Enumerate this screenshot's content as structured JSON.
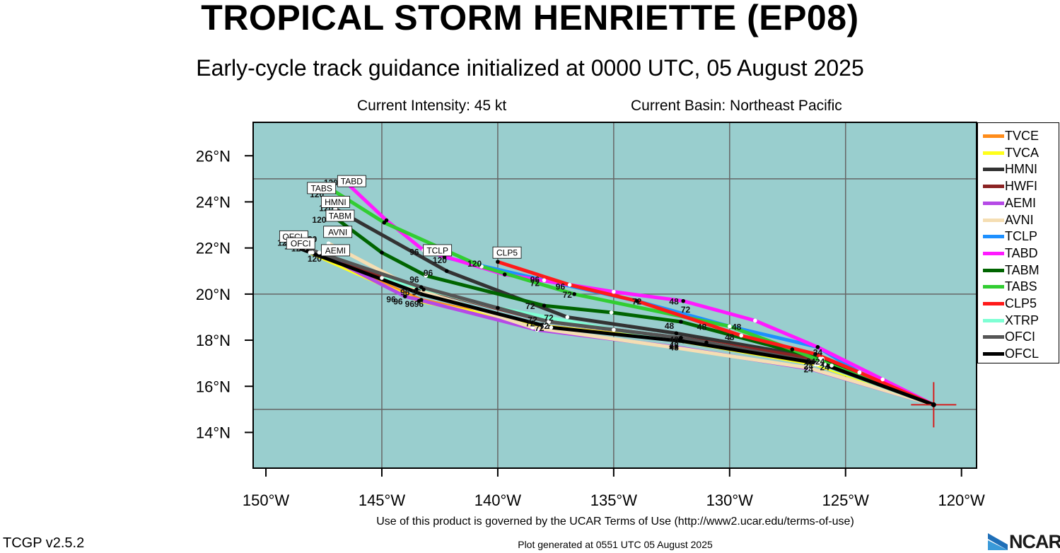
{
  "header": {
    "title": "TROPICAL STORM HENRIETTE (EP08)",
    "subtitle": "Early-cycle track guidance initialized at 0000 UTC, 05 August 2025",
    "intensity": "Current Intensity: 45 kt",
    "basin": "Current Basin: Northeast Pacific"
  },
  "colors": {
    "ocean": "#99CECE",
    "grid": "#666666",
    "TVCE": "#FF8C1A",
    "TVCA": "#FFFF1A",
    "HMNI": "#333333",
    "HWFI": "#8B2323",
    "AEMI": "#B54AE6",
    "AVNI": "#F5DEB3",
    "TCLP": "#1E90FF",
    "TABD": "#FF1AFF",
    "TABM": "#006400",
    "TABS": "#32CD32",
    "CLP5": "#FF1A1A",
    "XTRP": "#7FFFD4",
    "OFCI": "#555555",
    "OFCL": "#000000"
  },
  "axes": {
    "lon_ticks": [
      {
        "value": -150,
        "label": "150°W"
      },
      {
        "value": -145,
        "label": "145°W"
      },
      {
        "value": -140,
        "label": "140°W"
      },
      {
        "value": -135,
        "label": "135°W"
      },
      {
        "value": -130,
        "label": "130°W"
      },
      {
        "value": -125,
        "label": "125°W"
      },
      {
        "value": -120,
        "label": "120°W"
      }
    ],
    "lat_ticks": [
      {
        "value": 14,
        "label": "14°N"
      },
      {
        "value": 16,
        "label": "16°N"
      },
      {
        "value": 18,
        "label": "18°N"
      },
      {
        "value": 20,
        "label": "20°N"
      },
      {
        "value": 22,
        "label": "22°N"
      },
      {
        "value": 24,
        "label": "24°N"
      },
      {
        "value": 26,
        "label": "26°N"
      }
    ],
    "lon_grid": [
      -145,
      -140,
      -135,
      -130,
      -125
    ],
    "lat_grid": [
      15,
      20,
      25
    ],
    "lon_range": [
      -150.55,
      -119.35
    ],
    "lat_range": [
      12.45,
      27.45
    ]
  },
  "storm": {
    "lon": -121.2,
    "lat": 15.2
  },
  "legend": [
    "TVCE",
    "TVCA",
    "HMNI",
    "HWFI",
    "AEMI",
    "AVNI",
    "TCLP",
    "TABD",
    "TABM",
    "TABS",
    "CLP5",
    "XTRP",
    "OFCI",
    "OFCL"
  ],
  "tracks": [
    {
      "name": "TVCE",
      "points": [
        [
          -121.2,
          15.2
        ],
        [
          -126.2,
          16.95
        ],
        [
          -132.2,
          18.0
        ],
        [
          -137.9,
          18.6
        ],
        [
          -143.3,
          19.75
        ],
        [
          -148.0,
          21.8
        ]
      ]
    },
    {
      "name": "TVCA",
      "points": [
        [
          -121.2,
          15.2
        ],
        [
          -126.3,
          16.95
        ],
        [
          -132.3,
          18.0
        ],
        [
          -138.0,
          18.6
        ],
        [
          -143.4,
          19.7
        ],
        [
          -148.1,
          21.8
        ]
      ]
    },
    {
      "name": "HMNI",
      "points": [
        [
          -121.2,
          15.2
        ],
        [
          -126.0,
          17.2
        ],
        [
          -132.3,
          18.3
        ],
        [
          -137.0,
          19.0
        ],
        [
          -142.2,
          21.0
        ],
        [
          -147.0,
          23.7
        ]
      ]
    },
    {
      "name": "HWFI",
      "points": [
        [
          -121.2,
          15.2
        ],
        [
          -126.0,
          17.15
        ],
        [
          -132.1,
          18.1
        ],
        [
          -137.8,
          18.8
        ],
        [
          -143.2,
          20.2
        ],
        [
          -148.0,
          21.8
        ]
      ]
    },
    {
      "name": "AEMI",
      "points": [
        [
          -121.2,
          15.2
        ],
        [
          -126.5,
          16.75
        ],
        [
          -132.3,
          17.7
        ],
        [
          -138.3,
          18.45
        ],
        [
          -144.0,
          19.9
        ],
        [
          -147.7,
          21.8
        ]
      ]
    },
    {
      "name": "AVNI",
      "points": [
        [
          -121.2,
          15.2
        ],
        [
          -126.6,
          16.8
        ],
        [
          -132.5,
          17.7
        ],
        [
          -138.5,
          18.55
        ],
        [
          -143.5,
          20.2
        ],
        [
          -147.3,
          22.2
        ]
      ]
    },
    {
      "name": "TCLP",
      "points": [
        [
          -121.2,
          15.2
        ],
        [
          -124.4,
          16.6
        ],
        [
          -126.2,
          17.7
        ],
        [
          -130.0,
          18.6
        ],
        [
          -134.0,
          19.7
        ],
        [
          -138.0,
          20.6
        ],
        [
          -142.3,
          21.6
        ]
      ]
    },
    {
      "name": "TABD",
      "points": [
        [
          -121.2,
          15.2
        ],
        [
          -123.4,
          16.3
        ],
        [
          -126.2,
          17.7
        ],
        [
          -128.9,
          18.85
        ],
        [
          -132.0,
          19.7
        ],
        [
          -135.0,
          20.1
        ],
        [
          -139.7,
          20.85
        ],
        [
          -143.2,
          21.9
        ],
        [
          -144.8,
          23.2
        ],
        [
          -146.6,
          24.9
        ]
      ]
    },
    {
      "name": "TABM",
      "points": [
        [
          -121.2,
          15.2
        ],
        [
          -126.1,
          17.2
        ],
        [
          -132.1,
          18.8
        ],
        [
          -135.1,
          19.2
        ],
        [
          -138.0,
          19.5
        ],
        [
          -143.1,
          20.8
        ],
        [
          -145.0,
          21.8
        ],
        [
          -147.0,
          23.3
        ]
      ]
    },
    {
      "name": "TABS",
      "points": [
        [
          -121.2,
          15.2
        ],
        [
          -125.6,
          16.9
        ],
        [
          -127.3,
          17.6
        ],
        [
          -130.0,
          18.6
        ],
        [
          -136.7,
          20.0
        ],
        [
          -140.7,
          21.2
        ],
        [
          -144.9,
          23.1
        ],
        [
          -147.1,
          24.5
        ]
      ]
    },
    {
      "name": "CLP5",
      "points": [
        [
          -121.2,
          15.2
        ],
        [
          -124.4,
          16.6
        ],
        [
          -126.3,
          17.4
        ],
        [
          -129.5,
          18.2
        ],
        [
          -134.0,
          19.7
        ],
        [
          -136.9,
          20.4
        ],
        [
          -140.0,
          21.4
        ]
      ]
    },
    {
      "name": "XTRP",
      "points": [
        [
          -121.2,
          15.2
        ],
        [
          -126.2,
          17.0
        ],
        [
          -131.0,
          17.9
        ],
        [
          -135.0,
          18.45
        ],
        [
          -140.0,
          19.4
        ],
        [
          -145.0,
          20.7
        ]
      ]
    },
    {
      "name": "OFCI",
      "points": [
        [
          -121.2,
          15.2
        ],
        [
          -126.1,
          17.0
        ],
        [
          -132.1,
          18.1
        ],
        [
          -137.8,
          18.8
        ],
        [
          -143.3,
          20.3
        ],
        [
          -148.3,
          22.0
        ]
      ]
    },
    {
      "name": "OFCL",
      "points": [
        [
          -121.2,
          15.2
        ],
        [
          -125.9,
          16.95
        ],
        [
          -132.0,
          17.95
        ],
        [
          -137.7,
          18.55
        ],
        [
          -143.3,
          20.0
        ],
        [
          -148.6,
          22.0
        ]
      ]
    }
  ],
  "track_end_labels": [
    {
      "text": "TABD",
      "lon": -146.3,
      "lat": 24.9
    },
    {
      "text": "TABS",
      "lon": -147.6,
      "lat": 24.6
    },
    {
      "text": "HMNI",
      "lon": -147.0,
      "lat": 24.0
    },
    {
      "text": "TABM",
      "lon": -146.8,
      "lat": 23.4
    },
    {
      "text": "AVNI",
      "lon": -146.9,
      "lat": 22.7
    },
    {
      "text": "OFCL",
      "lon": -148.8,
      "lat": 22.5
    },
    {
      "text": "OFCI",
      "lon": -148.5,
      "lat": 22.2
    },
    {
      "text": "AEMI",
      "lon": -147.0,
      "lat": 21.9
    },
    {
      "text": "TCLP",
      "lon": -142.6,
      "lat": 21.9
    },
    {
      "text": "CLP5",
      "lon": -139.6,
      "lat": 21.8
    }
  ],
  "hour_labels": [
    {
      "text": "120",
      "lon": -147.2,
      "lat": 24.7
    },
    {
      "text": "120",
      "lon": -147.8,
      "lat": 24.2
    },
    {
      "text": "120",
      "lon": -147.4,
      "lat": 23.6
    },
    {
      "text": "120",
      "lon": -147.7,
      "lat": 23.1
    },
    {
      "text": "120",
      "lon": -148.1,
      "lat": 22.25
    },
    {
      "text": "120",
      "lon": -149.2,
      "lat": 22.1
    },
    {
      "text": "120",
      "lon": -148.9,
      "lat": 21.95
    },
    {
      "text": "120",
      "lon": -148.6,
      "lat": 21.85
    },
    {
      "text": "120",
      "lon": -147.9,
      "lat": 21.4
    },
    {
      "text": "120",
      "lon": -142.5,
      "lat": 21.35
    },
    {
      "text": "120",
      "lon": -141.0,
      "lat": 21.2
    },
    {
      "text": "96",
      "lon": -143.6,
      "lat": 21.7
    },
    {
      "text": "96",
      "lon": -142.8,
      "lat": 21.75
    },
    {
      "text": "96",
      "lon": -143.0,
      "lat": 20.8
    },
    {
      "text": "96",
      "lon": -143.6,
      "lat": 20.5
    },
    {
      "text": "96",
      "lon": -144.0,
      "lat": 19.95
    },
    {
      "text": "96",
      "lon": -143.5,
      "lat": 19.95
    },
    {
      "text": "96",
      "lon": -144.6,
      "lat": 19.65
    },
    {
      "text": "96",
      "lon": -144.3,
      "lat": 19.55
    },
    {
      "text": "96",
      "lon": -143.8,
      "lat": 19.45
    },
    {
      "text": "96",
      "lon": -143.4,
      "lat": 19.45
    },
    {
      "text": "96",
      "lon": -138.4,
      "lat": 20.5
    },
    {
      "text": "96",
      "lon": -137.3,
      "lat": 20.2
    },
    {
      "text": "72",
      "lon": -138.4,
      "lat": 20.35
    },
    {
      "text": "72",
      "lon": -137.0,
      "lat": 19.85
    },
    {
      "text": "72",
      "lon": -134.0,
      "lat": 19.55
    },
    {
      "text": "72",
      "lon": -131.9,
      "lat": 19.2
    },
    {
      "text": "72",
      "lon": -138.6,
      "lat": 19.35
    },
    {
      "text": "72",
      "lon": -137.8,
      "lat": 18.85
    },
    {
      "text": "72",
      "lon": -138.5,
      "lat": 18.75
    },
    {
      "text": "72",
      "lon": -138.6,
      "lat": 18.6
    },
    {
      "text": "72",
      "lon": -138.2,
      "lat": 18.4
    },
    {
      "text": "72",
      "lon": -138.0,
      "lat": 18.5
    },
    {
      "text": "48",
      "lon": -132.4,
      "lat": 19.55
    },
    {
      "text": "48",
      "lon": -132.6,
      "lat": 18.5
    },
    {
      "text": "48",
      "lon": -131.2,
      "lat": 18.45
    },
    {
      "text": "48",
      "lon": -129.7,
      "lat": 18.45
    },
    {
      "text": "48",
      "lon": -130.0,
      "lat": 18.0
    },
    {
      "text": "48",
      "lon": -132.4,
      "lat": 17.9
    },
    {
      "text": "48",
      "lon": -132.4,
      "lat": 17.65
    },
    {
      "text": "48",
      "lon": -132.4,
      "lat": 17.55
    },
    {
      "text": "24",
      "lon": -126.2,
      "lat": 17.35
    },
    {
      "text": "24",
      "lon": -126.5,
      "lat": 16.95
    },
    {
      "text": "24",
      "lon": -126.1,
      "lat": 16.95
    },
    {
      "text": "24",
      "lon": -126.6,
      "lat": 16.75
    },
    {
      "text": "24",
      "lon": -126.6,
      "lat": 16.6
    },
    {
      "text": "24",
      "lon": -125.9,
      "lat": 16.7
    }
  ],
  "footer": {
    "terms": "Use of this product is governed by the UCAR Terms of Use (http://www2.ucar.edu/terms-of-use)",
    "version": "TCGP v2.5.2",
    "generated": "Plot generated at 0551 UTC   05 August 2025",
    "logo": "NCAR"
  }
}
